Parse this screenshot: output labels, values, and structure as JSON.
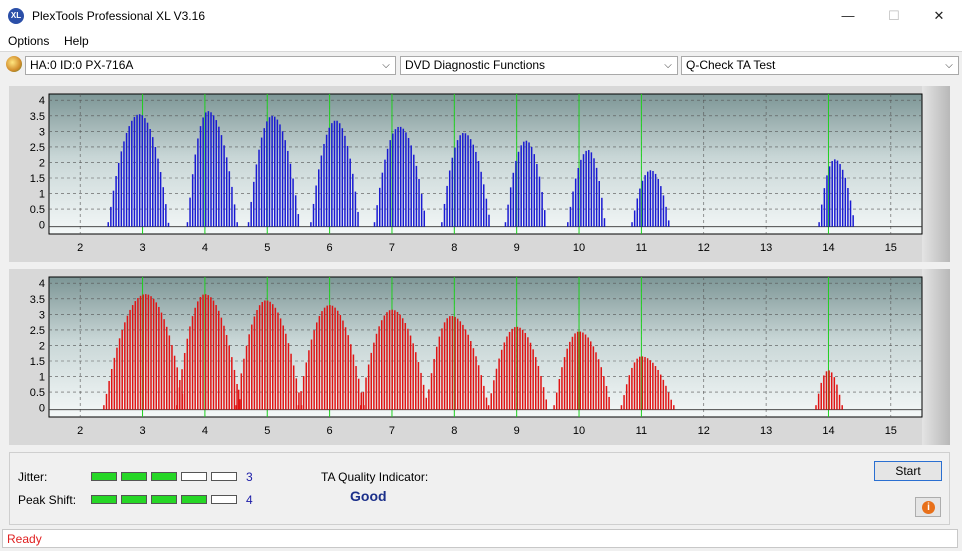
{
  "window": {
    "title": "PlexTools Professional XL V3.16",
    "app_icon_text": "XL",
    "minimize_glyph": "—",
    "maximize_glyph": "☐",
    "close_glyph": "✕"
  },
  "menu": {
    "items": [
      "Options",
      "Help"
    ]
  },
  "toolbar": {
    "drive": "HA:0 ID:0  PX-716A",
    "function": "DVD Diagnostic Functions",
    "test": "Q-Check TA Test",
    "dropdown_glyph": "⌵"
  },
  "colors": {
    "top_series": "#1a1ad2",
    "bottom_series": "#e01414",
    "peak_lines": "#20d020",
    "meter_on": "#26d726"
  },
  "chart_data": [
    {
      "type": "bar",
      "xlim": [
        1.5,
        15.5
      ],
      "ylim": [
        -0.3,
        4.2
      ],
      "xticks": [
        2,
        3,
        4,
        5,
        6,
        7,
        8,
        9,
        10,
        11,
        12,
        13,
        14,
        15
      ],
      "yticks": [
        0,
        0.5,
        1,
        1.5,
        2,
        2.5,
        3,
        3.5,
        4
      ],
      "ytick_labels": [
        "0",
        "0.5",
        "1",
        "1.5",
        "2",
        "2.5",
        "3",
        "3.5",
        "4"
      ],
      "peak_markers": [
        3,
        4,
        5,
        6,
        7,
        8,
        9,
        10,
        11,
        14
      ],
      "grid": true,
      "series": [
        {
          "color": "#1a1ad2",
          "lobes": [
            {
              "center": 2.95,
              "start": 2.45,
              "end": 3.42,
              "peak": 3.55
            },
            {
              "center": 4.05,
              "start": 3.72,
              "end": 4.52,
              "peak": 3.65
            },
            {
              "center": 5.08,
              "start": 4.7,
              "end": 5.52,
              "peak": 3.5
            },
            {
              "center": 6.1,
              "start": 5.7,
              "end": 6.48,
              "peak": 3.35
            },
            {
              "center": 7.12,
              "start": 6.72,
              "end": 7.55,
              "peak": 3.15
            },
            {
              "center": 8.15,
              "start": 7.8,
              "end": 8.58,
              "peak": 2.95
            },
            {
              "center": 9.15,
              "start": 8.82,
              "end": 9.48,
              "peak": 2.7
            },
            {
              "center": 10.15,
              "start": 9.82,
              "end": 10.42,
              "peak": 2.4
            },
            {
              "center": 11.15,
              "start": 10.85,
              "end": 11.45,
              "peak": 1.75
            },
            {
              "center": 14.1,
              "start": 13.85,
              "end": 14.42,
              "peak": 2.1
            }
          ]
        }
      ]
    },
    {
      "type": "bar",
      "xlim": [
        1.5,
        15.5
      ],
      "ylim": [
        -0.3,
        4.2
      ],
      "xticks": [
        2,
        3,
        4,
        5,
        6,
        7,
        8,
        9,
        10,
        11,
        12,
        13,
        14,
        15
      ],
      "yticks": [
        0,
        0.5,
        1,
        1.5,
        2,
        2.5,
        3,
        3.5,
        4
      ],
      "ytick_labels": [
        "0",
        "0.5",
        "1",
        "1.5",
        "2",
        "2.5",
        "3",
        "3.5",
        "4"
      ],
      "peak_markers": [
        3,
        4,
        5,
        6,
        7,
        8,
        9,
        10,
        11,
        14
      ],
      "grid": true,
      "series": [
        {
          "color": "#e01414",
          "lobes": [
            {
              "center": 3.05,
              "start": 2.38,
              "end": 3.68,
              "peak": 3.65
            },
            {
              "center": 4.0,
              "start": 3.55,
              "end": 4.58,
              "peak": 3.65
            },
            {
              "center": 4.98,
              "start": 4.5,
              "end": 5.55,
              "peak": 3.45
            },
            {
              "center": 6.0,
              "start": 5.5,
              "end": 6.55,
              "peak": 3.3
            },
            {
              "center": 7.0,
              "start": 6.5,
              "end": 7.58,
              "peak": 3.15
            },
            {
              "center": 7.95,
              "start": 7.55,
              "end": 8.55,
              "peak": 2.95
            },
            {
              "center": 9.0,
              "start": 8.55,
              "end": 9.5,
              "peak": 2.6
            },
            {
              "center": 10.0,
              "start": 9.6,
              "end": 10.52,
              "peak": 2.45
            },
            {
              "center": 11.0,
              "start": 10.68,
              "end": 11.52,
              "peak": 1.65
            },
            {
              "center": 14.0,
              "start": 13.8,
              "end": 14.22,
              "peak": 1.2
            }
          ]
        }
      ]
    }
  ],
  "metrics": {
    "jitter_label": "Jitter:",
    "jitter_value": "3",
    "jitter_level": 3,
    "peak_shift_label": "Peak Shift:",
    "peak_shift_value": "4",
    "peak_shift_level": 4,
    "meter_segments": 5,
    "ta_label": "TA Quality Indicator:",
    "ta_value": "Good"
  },
  "buttons": {
    "start": "Start",
    "info_glyph": "i"
  },
  "status": {
    "text": "Ready"
  }
}
